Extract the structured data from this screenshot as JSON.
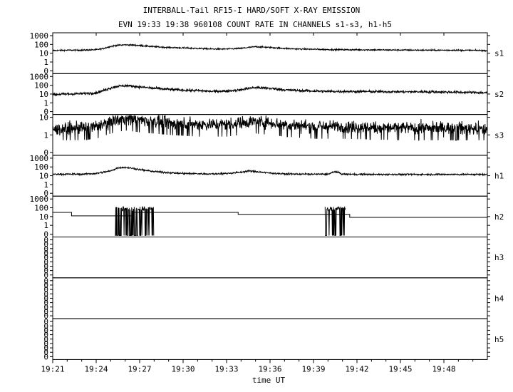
{
  "title": "INTERBALL-Tail RF15-I HARD/SOFT X-RAY EMISSION",
  "subtitle": "EVN 19:33 19:38 960108  COUNT RATE IN CHANNELS s1-s3, h1-h5",
  "chart_data": {
    "type": "line",
    "xlabel": "time UT",
    "x_range": [
      "19:21",
      "19:51"
    ],
    "x_ticks": [
      "19:21",
      "19:24",
      "19:27",
      "19:30",
      "19:33",
      "19:36",
      "19:39",
      "19:42",
      "19:45",
      "19:48"
    ],
    "y_scale": "log",
    "panels": [
      {
        "name": "s1",
        "y_ticks": [
          "1000",
          "100",
          "10",
          "1",
          "0"
        ],
        "series": {
          "x_min": [
            0,
            1,
            2,
            3,
            3.5,
            4,
            4.5,
            5,
            5.5,
            6,
            7,
            8,
            9,
            10,
            11,
            12,
            13,
            13.5,
            14,
            15,
            16,
            17,
            18,
            19,
            20,
            22,
            24,
            26,
            28,
            30
          ],
          "y": [
            20,
            22,
            22,
            25,
            35,
            60,
            80,
            90,
            85,
            75,
            55,
            45,
            40,
            35,
            30,
            30,
            35,
            45,
            55,
            45,
            35,
            30,
            28,
            26,
            25,
            24,
            23,
            22,
            22,
            20
          ],
          "noise": 0.3
        }
      },
      {
        "name": "s2",
        "y_ticks": [
          "1000",
          "100",
          "10",
          "1",
          "0"
        ],
        "series": {
          "x_min": [
            0,
            1,
            2,
            3,
            3.5,
            4,
            4.5,
            5,
            5.5,
            6,
            7,
            8,
            9,
            10,
            11,
            12,
            13,
            13.5,
            14,
            15,
            16,
            17,
            18,
            19,
            20,
            22,
            24,
            26,
            28,
            30
          ],
          "y": [
            9,
            10,
            11,
            14,
            25,
            50,
            80,
            90,
            80,
            65,
            45,
            35,
            28,
            25,
            20,
            22,
            30,
            45,
            55,
            45,
            30,
            25,
            22,
            20,
            20,
            19,
            18,
            18,
            16,
            14
          ],
          "noise": 0.55
        }
      },
      {
        "name": "s3",
        "y_ticks": [
          "10",
          "1",
          "0"
        ],
        "series": {
          "x_min": [
            0,
            2,
            3,
            4,
            5,
            6,
            8,
            10,
            12,
            13,
            14,
            15,
            16,
            18,
            20,
            24,
            28,
            30
          ],
          "y": [
            2,
            2.5,
            3,
            6,
            9,
            7,
            5,
            4,
            4,
            5,
            6,
            5,
            4,
            3,
            3,
            2.5,
            2.5,
            2
          ],
          "noise": 1.3
        }
      },
      {
        "name": "h1",
        "y_ticks": [
          "1000",
          "100",
          "10",
          "1",
          "0"
        ],
        "series": {
          "x_min": [
            0,
            2,
            3,
            4,
            4.5,
            5,
            5.5,
            6,
            7,
            8,
            9,
            11,
            12,
            13,
            13.5,
            14,
            15,
            16,
            18,
            19,
            19.5,
            20,
            22,
            24,
            26,
            28,
            30
          ],
          "y": [
            15,
            15,
            18,
            35,
            80,
            90,
            70,
            50,
            30,
            22,
            18,
            16,
            18,
            25,
            35,
            30,
            20,
            16,
            15,
            15,
            30,
            15,
            14,
            14,
            14,
            14,
            14
          ],
          "noise": 0.35
        }
      },
      {
        "name": "h2",
        "y_ticks": [
          "1000",
          "100",
          "10",
          "1",
          "0"
        ],
        "series": {
          "steps": [
            [
              0,
              30
            ],
            [
              1.3,
              12
            ],
            [
              5.5,
              30
            ],
            [
              12.8,
              18
            ],
            [
              20.5,
              8
            ],
            [
              30,
              8
            ]
          ],
          "bursts": [
            [
              4.3,
              7.0
            ],
            [
              18.8,
              20.2
            ]
          ],
          "burst_level": 45
        }
      },
      {
        "name": "h3",
        "y_ticks": [
          "0",
          "0",
          "0",
          "0",
          "0",
          "0",
          "0",
          "0",
          "0"
        ]
      },
      {
        "name": "h4",
        "y_ticks": [
          "0",
          "0",
          "0",
          "0",
          "0",
          "0",
          "0",
          "0",
          "0"
        ]
      },
      {
        "name": "h5",
        "y_ticks": [
          "0",
          "0",
          "0",
          "0",
          "0",
          "0",
          "0",
          "0",
          "0"
        ]
      }
    ]
  }
}
